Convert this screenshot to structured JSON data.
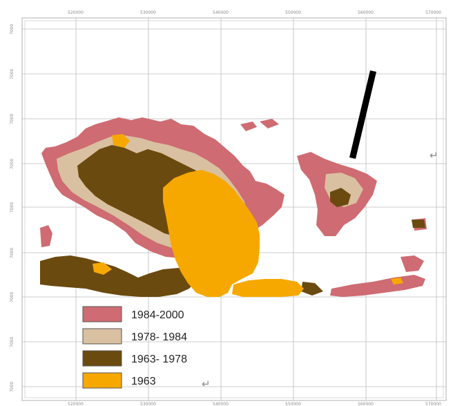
{
  "map": {
    "x_tick_labels": [
      "520000",
      "530000",
      "540000",
      "550000",
      "560000",
      "570000"
    ],
    "y_tick_labels": [
      "7000",
      "7000",
      "7000",
      "7000",
      "7000",
      "7000",
      "7000",
      "7000",
      "7000",
      "7000"
    ],
    "north_arrow": "north-arrow",
    "return_mark": "↵",
    "classes": [
      {
        "label": "1984-2000",
        "color": "#cf6b72"
      },
      {
        "label": "1978- 1984",
        "color": "#d9c0a0"
      },
      {
        "label": "1963- 1978",
        "color": "#6b4a0f"
      },
      {
        "label": "1963",
        "color": "#f7a800"
      }
    ],
    "legend": {
      "items": [
        {
          "label": "1984-2000",
          "color": "#cf6b72"
        },
        {
          "label": "1978- 1984",
          "color": "#d9c0a0"
        },
        {
          "label": "1963- 1978",
          "color": "#6b4a0f"
        },
        {
          "label": "1963",
          "color": "#f7a800"
        }
      ],
      "trailing_mark": "↵"
    }
  }
}
